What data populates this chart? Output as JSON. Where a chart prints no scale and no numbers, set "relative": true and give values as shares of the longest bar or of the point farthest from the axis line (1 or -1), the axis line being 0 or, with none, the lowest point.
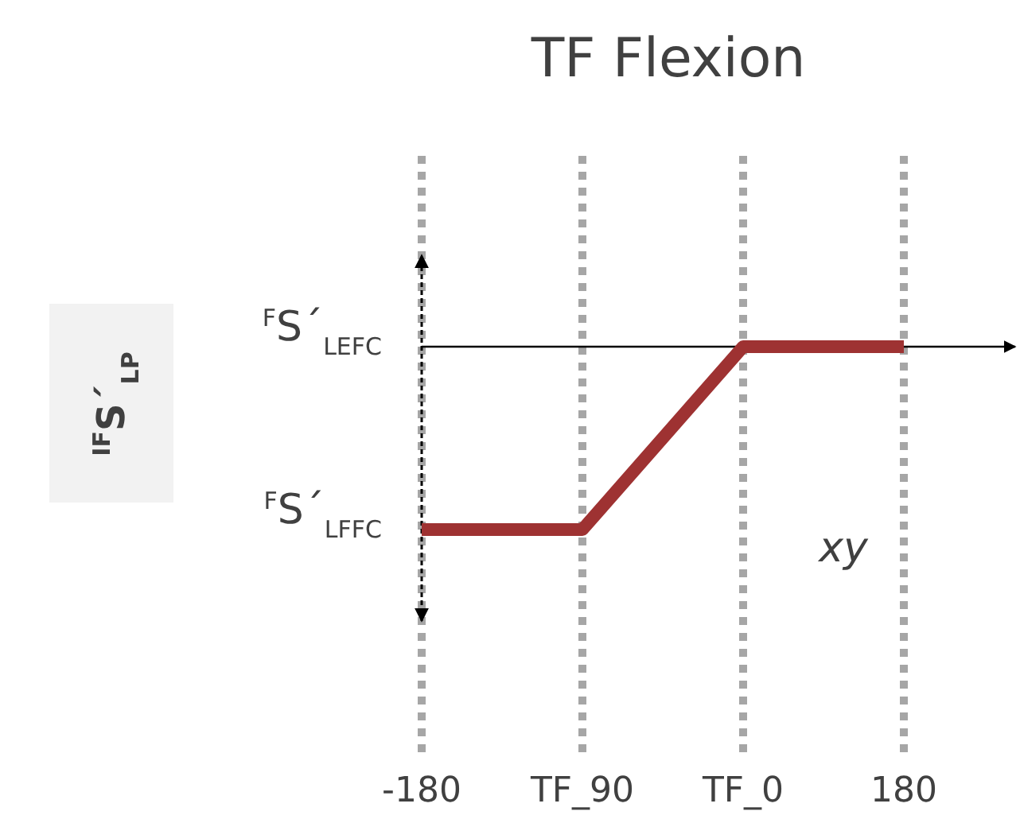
{
  "chart_data": {
    "type": "line",
    "title": "TF Flexion",
    "categories": [
      "-180",
      "TF_90",
      "TF_0",
      "180"
    ],
    "series": [
      {
        "color": "#9e3232",
        "values": [
          -1,
          -1,
          0,
          0
        ]
      }
    ],
    "relative": true,
    "grid": "x",
    "marker": "none",
    "line_style": "solid",
    "annotations": [
      "$^{IF}$S´$_{LP}$",
      "$^{F}$S´$_{LEFC}$",
      "$^{F}$S´$_{LFFC}$",
      "xy"
    ]
  }
}
